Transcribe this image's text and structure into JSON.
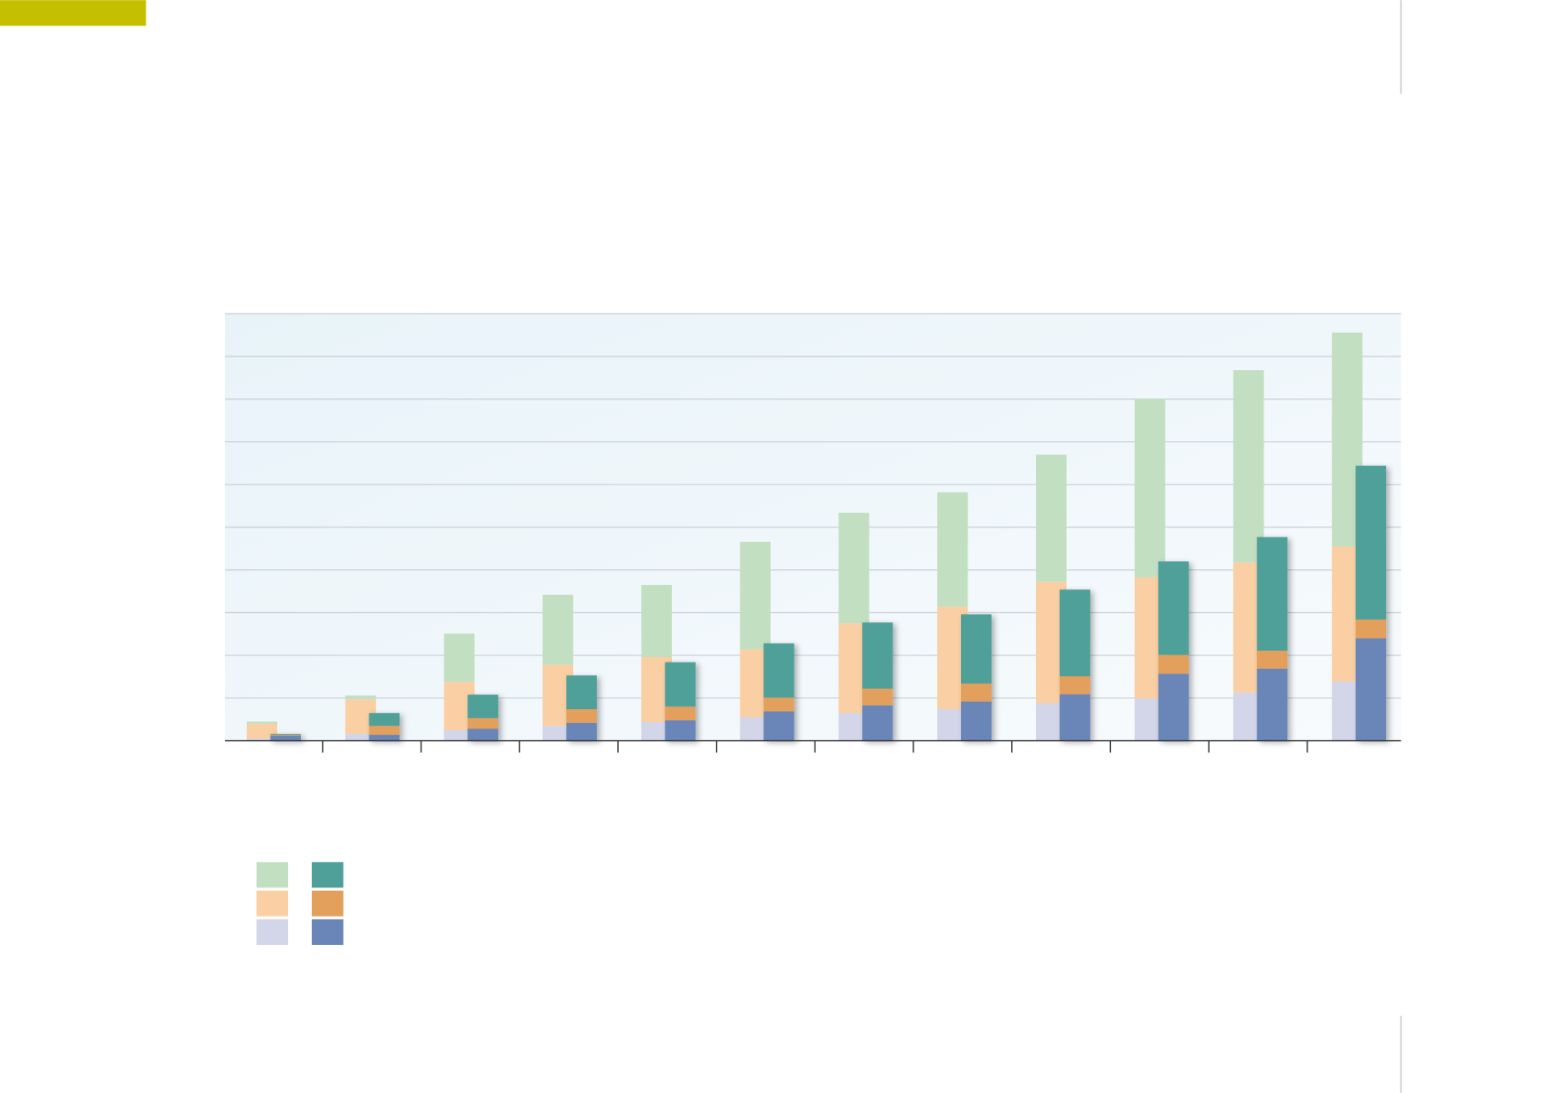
{
  "chart_data": {
    "type": "bar",
    "stacked": true,
    "categories": [
      null,
      null,
      null,
      null,
      null,
      null,
      null,
      null,
      null,
      null,
      null,
      null
    ],
    "ylim": [
      0,
      10
    ],
    "yticks": [
      0,
      1,
      2,
      3,
      4,
      5,
      6,
      7,
      8,
      9,
      10
    ],
    "grid": true,
    "series": [
      {
        "color": "#d3d5e9",
        "group": 0,
        "values": [
          0.05,
          0.16,
          0.25,
          0.35,
          0.44,
          0.55,
          0.65,
          0.74,
          0.88,
          0.99,
          1.13,
          1.39
        ]
      },
      {
        "color": "#f9cfa3",
        "group": 0,
        "values": [
          0.35,
          0.81,
          1.13,
          1.43,
          1.52,
          1.59,
          2.1,
          2.4,
          2.84,
          2.84,
          3.05,
          3.16
        ]
      },
      {
        "color": "#c3dfc2",
        "group": 0,
        "values": [
          0.05,
          0.09,
          1.13,
          1.64,
          1.69,
          2.52,
          2.59,
          2.68,
          2.98,
          4.18,
          4.5,
          5.01
        ]
      },
      {
        "color": "#6a86b8",
        "group": 1,
        "values": [
          0.12,
          0.14,
          0.28,
          0.42,
          0.48,
          0.69,
          0.83,
          0.92,
          1.09,
          1.57,
          1.69,
          2.4
        ]
      },
      {
        "color": "#e39f5c",
        "group": 1,
        "values": [
          0.02,
          0.21,
          0.25,
          0.32,
          0.32,
          0.32,
          0.39,
          0.42,
          0.42,
          0.44,
          0.42,
          0.44
        ]
      },
      {
        "color": "#4fa098",
        "group": 1,
        "values": [
          0.02,
          0.3,
          0.55,
          0.79,
          1.04,
          1.27,
          1.55,
          1.62,
          2.03,
          2.19,
          2.66,
          3.6
        ]
      }
    ]
  }
}
